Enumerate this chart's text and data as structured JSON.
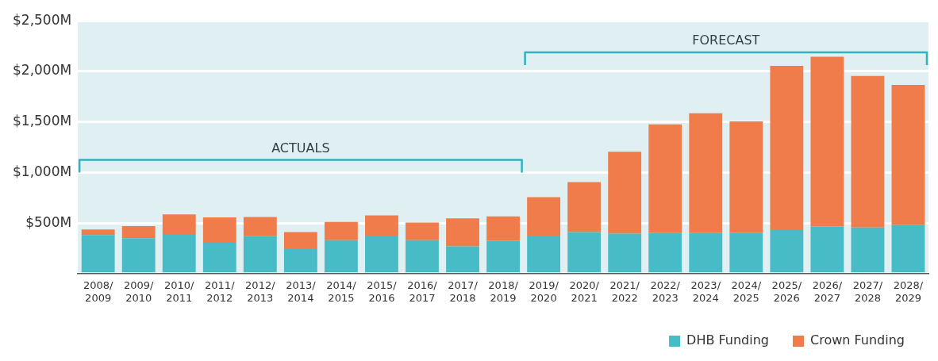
{
  "chart_data": {
    "type": "bar",
    "stacked": true,
    "categories": [
      "2008/ 2009",
      "2009/ 2010",
      "2010/ 2011",
      "2011/ 2012",
      "2012/ 2013",
      "2013/ 2014",
      "2014/ 2015",
      "2015/ 2016",
      "2016/ 2017",
      "2017/ 2018",
      "2018/ 2019",
      "2019/ 2020",
      "2020/ 2021",
      "2021/ 2022",
      "2022/ 2023",
      "2023/ 2024",
      "2024/ 2025",
      "2025/ 2026",
      "2026/ 2027",
      "2027/ 2028",
      "2028/ 2029"
    ],
    "series": [
      {
        "name": "DHB Funding",
        "color": "#47bcc6",
        "values": [
          380,
          350,
          390,
          305,
          370,
          250,
          330,
          375,
          330,
          270,
          325,
          375,
          410,
          395,
          400,
          400,
          405,
          430,
          465,
          455,
          480
        ]
      },
      {
        "name": "Crown Funding",
        "color": "#f07b4b",
        "values": [
          55,
          120,
          195,
          250,
          190,
          160,
          180,
          200,
          175,
          275,
          240,
          380,
          495,
          810,
          1075,
          1185,
          1100,
          1625,
          1680,
          1500,
          1385
        ]
      }
    ],
    "ylim": [
      0,
      2500
    ],
    "yticks": [
      {
        "value": 0,
        "label": null
      },
      {
        "value": 500,
        "label": "$500M"
      },
      {
        "value": 1000,
        "label": "$1,000M"
      },
      {
        "value": 1500,
        "label": "$1,500M"
      },
      {
        "value": 2000,
        "label": "$2,000M"
      },
      {
        "value": 2500,
        "label": "$2,500M"
      }
    ],
    "grid": "y",
    "legend": "bottom right",
    "annotations": [
      "ACTUALS",
      "FORECAST"
    ]
  }
}
